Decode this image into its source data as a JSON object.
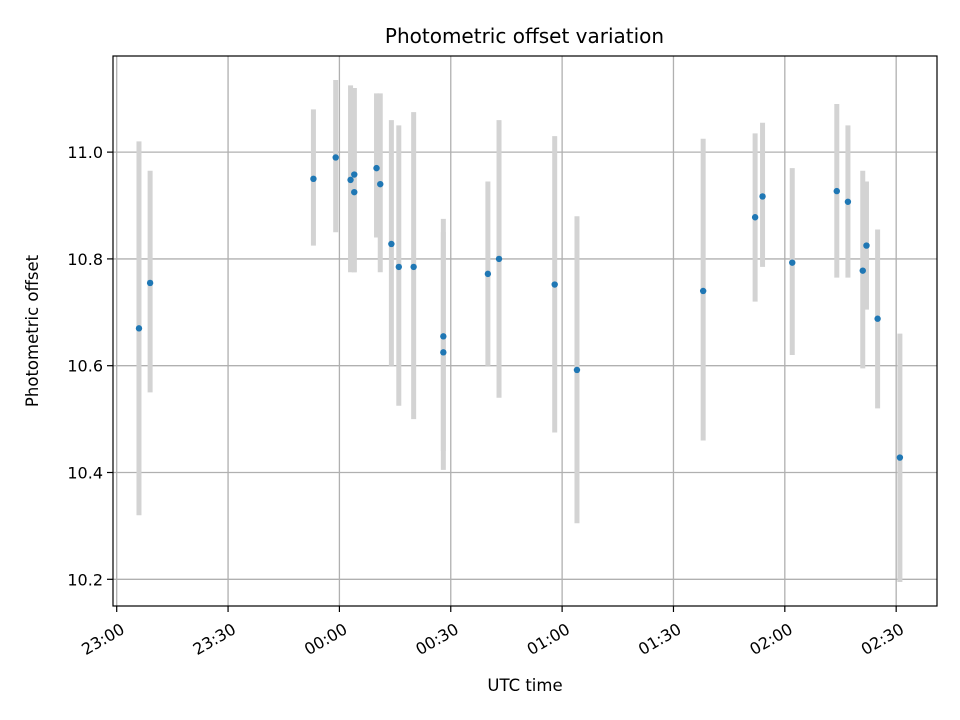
{
  "chart_data": {
    "type": "scatter",
    "title": "Photometric offset variation",
    "xlabel": "UTC time",
    "ylabel": "Photometric offset",
    "grid": true,
    "xlim": [
      "22:59",
      "02:41"
    ],
    "ylim": [
      10.15,
      11.18
    ],
    "x_ticks": [
      {
        "label": "23:00",
        "value": "23:00"
      },
      {
        "label": "23:30",
        "value": "23:30"
      },
      {
        "label": "00:00",
        "value": "00:00"
      },
      {
        "label": "00:30",
        "value": "00:30"
      },
      {
        "label": "01:00",
        "value": "01:00"
      },
      {
        "label": "01:30",
        "value": "01:30"
      },
      {
        "label": "02:00",
        "value": "02:00"
      },
      {
        "label": "02:30",
        "value": "02:30"
      }
    ],
    "y_ticks": [
      {
        "label": "10.2",
        "value": 10.2
      },
      {
        "label": "10.4",
        "value": 10.4
      },
      {
        "label": "10.6",
        "value": 10.6
      },
      {
        "label": "10.8",
        "value": 10.8
      },
      {
        "label": "11.0",
        "value": 11.0
      }
    ],
    "colors": {
      "point": "#1f77b4",
      "errorbar": "#d3d3d3",
      "grid": "#b0b0b0"
    },
    "points": [
      {
        "x": "23:06",
        "y": 10.67,
        "yerr_low": 10.32,
        "yerr_high": 11.02
      },
      {
        "x": "23:09",
        "y": 10.755,
        "yerr_low": 10.55,
        "yerr_high": 10.965
      },
      {
        "x": "23:53",
        "y": 10.95,
        "yerr_low": 10.825,
        "yerr_high": 11.08
      },
      {
        "x": "23:59",
        "y": 10.99,
        "yerr_low": 10.85,
        "yerr_high": 11.135
      },
      {
        "x": "00:03",
        "y": 10.948,
        "yerr_low": 10.775,
        "yerr_high": 11.125
      },
      {
        "x": "00:04",
        "y": 10.925,
        "yerr_low": 10.775,
        "yerr_high": 11.12
      },
      {
        "x": "00:04",
        "y": 10.958,
        "yerr_low": 10.775,
        "yerr_high": 11.12
      },
      {
        "x": "00:10",
        "y": 10.97,
        "yerr_low": 10.84,
        "yerr_high": 11.11
      },
      {
        "x": "00:11",
        "y": 10.94,
        "yerr_low": 10.775,
        "yerr_high": 11.11
      },
      {
        "x": "00:14",
        "y": 10.828,
        "yerr_low": 10.6,
        "yerr_high": 11.06
      },
      {
        "x": "00:16",
        "y": 10.785,
        "yerr_low": 10.525,
        "yerr_high": 11.05
      },
      {
        "x": "00:20",
        "y": 10.785,
        "yerr_low": 10.5,
        "yerr_high": 11.075
      },
      {
        "x": "00:28",
        "y": 10.655,
        "yerr_low": 10.44,
        "yerr_high": 10.875
      },
      {
        "x": "00:28",
        "y": 10.625,
        "yerr_low": 10.405,
        "yerr_high": 10.85
      },
      {
        "x": "00:40",
        "y": 10.772,
        "yerr_low": 10.6,
        "yerr_high": 10.945
      },
      {
        "x": "00:43",
        "y": 10.8,
        "yerr_low": 10.54,
        "yerr_high": 11.06
      },
      {
        "x": "00:58",
        "y": 10.752,
        "yerr_low": 10.475,
        "yerr_high": 11.03
      },
      {
        "x": "01:04",
        "y": 10.592,
        "yerr_low": 10.305,
        "yerr_high": 10.88
      },
      {
        "x": "01:38",
        "y": 10.74,
        "yerr_low": 10.46,
        "yerr_high": 11.025
      },
      {
        "x": "01:52",
        "y": 10.878,
        "yerr_low": 10.72,
        "yerr_high": 11.035
      },
      {
        "x": "01:54",
        "y": 10.917,
        "yerr_low": 10.785,
        "yerr_high": 11.055
      },
      {
        "x": "02:02",
        "y": 10.793,
        "yerr_low": 10.62,
        "yerr_high": 10.97
      },
      {
        "x": "02:14",
        "y": 10.927,
        "yerr_low": 10.765,
        "yerr_high": 11.09
      },
      {
        "x": "02:17",
        "y": 10.907,
        "yerr_low": 10.765,
        "yerr_high": 11.05
      },
      {
        "x": "02:21",
        "y": 10.778,
        "yerr_low": 10.595,
        "yerr_high": 10.965
      },
      {
        "x": "02:22",
        "y": 10.825,
        "yerr_low": 10.705,
        "yerr_high": 10.945
      },
      {
        "x": "02:25",
        "y": 10.688,
        "yerr_low": 10.52,
        "yerr_high": 10.855
      },
      {
        "x": "02:31",
        "y": 10.428,
        "yerr_low": 10.195,
        "yerr_high": 10.66
      }
    ]
  }
}
